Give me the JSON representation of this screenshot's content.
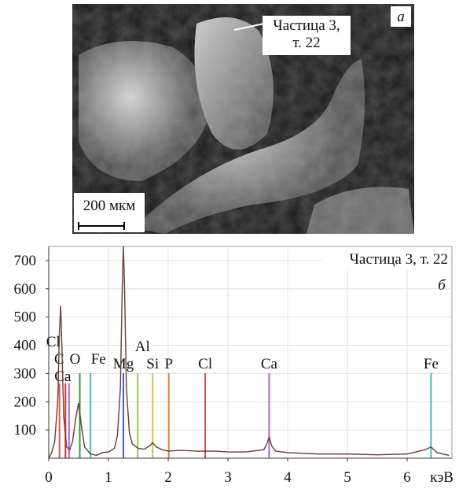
{
  "image": {
    "panel_label": "а",
    "callout": [
      "Частица 3,",
      "т. 22"
    ],
    "scale_bar": "200 мкм"
  },
  "chart_data": {
    "type": "line",
    "annotation": "Частица 3, т. 22",
    "panel_label": "б",
    "x_label": "кэВ",
    "x": [
      0,
      0.05,
      0.1,
      0.15,
      0.18,
      0.2,
      0.22,
      0.25,
      0.3,
      0.35,
      0.4,
      0.45,
      0.5,
      0.55,
      0.6,
      0.7,
      0.8,
      0.9,
      1.0,
      1.1,
      1.15,
      1.2,
      1.23,
      1.25,
      1.27,
      1.3,
      1.35,
      1.4,
      1.5,
      1.6,
      1.7,
      1.74,
      1.8,
      1.9,
      2.0,
      2.2,
      2.5,
      2.8,
      3.0,
      3.3,
      3.6,
      3.65,
      3.69,
      3.73,
      3.8,
      4.0,
      4.5,
      5.0,
      5.5,
      6.0,
      6.3,
      6.4,
      6.5,
      6.7
    ],
    "series": [
      {
        "color": "#6b3a3a",
        "values": [
          0,
          20,
          60,
          200,
          450,
          540,
          400,
          150,
          40,
          30,
          60,
          140,
          195,
          110,
          40,
          15,
          10,
          20,
          22,
          35,
          80,
          250,
          600,
          750,
          600,
          250,
          90,
          50,
          35,
          32,
          45,
          55,
          40,
          30,
          25,
          28,
          25,
          25,
          22,
          22,
          30,
          50,
          75,
          45,
          25,
          20,
          15,
          15,
          12,
          15,
          30,
          40,
          20,
          10
        ]
      }
    ],
    "markers": [
      {
        "label": "Cl",
        "x": 0.18,
        "color": "#d9534f"
      },
      {
        "label": "C",
        "x": 0.28,
        "color": "#c0392b"
      },
      {
        "label": "Ca",
        "x": 0.34,
        "color": "#b565c8"
      },
      {
        "label": "O",
        "x": 0.52,
        "color": "#3a9a3a"
      },
      {
        "label": "Fe",
        "x": 0.7,
        "color": "#3cc0c0"
      },
      {
        "label": "Mg",
        "x": 1.25,
        "color": "#4060d0"
      },
      {
        "label": "Al",
        "x": 1.49,
        "color": "#9ccc3c"
      },
      {
        "label": "Si",
        "x": 1.74,
        "color": "#c8c83c"
      },
      {
        "label": "P",
        "x": 2.01,
        "color": "#e08a30"
      },
      {
        "label": "Cl",
        "x": 2.62,
        "color": "#d05050"
      },
      {
        "label": "Ca",
        "x": 3.69,
        "color": "#b565c8"
      },
      {
        "label": "Fe",
        "x": 6.4,
        "color": "#3cc0c0"
      }
    ],
    "xlim": [
      0,
      6.75
    ],
    "ylim": [
      0,
      750
    ],
    "xticks": [
      0,
      1,
      2,
      3,
      4,
      5,
      6
    ],
    "yticks": [
      100,
      200,
      300,
      400,
      500,
      600,
      700
    ],
    "grid": true
  }
}
